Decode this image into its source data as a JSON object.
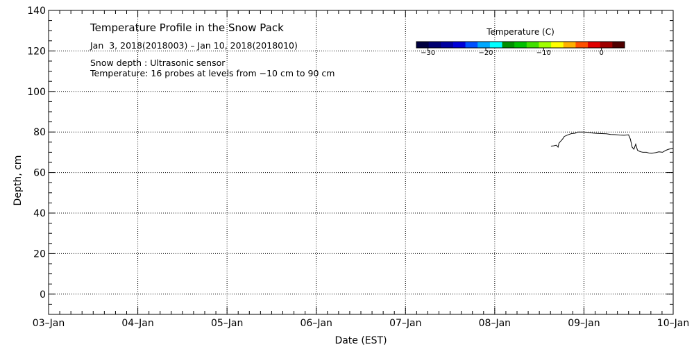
{
  "chart_data": {
    "type": "line",
    "title": "Temperature Profile in the Snow Pack",
    "subtitle_lines": [
      "Jan  3, 2018(2018003) – Jan 10, 2018(2018010)",
      "Snow depth : Ultrasonic sensor",
      "Temperature: 16 probes at levels from −10 cm to 90 cm"
    ],
    "xlabel": "Date (EST)",
    "ylabel": "Depth, cm",
    "x_ticks": [
      "03–Jan",
      "04–Jan",
      "05–Jan",
      "06–Jan",
      "07–Jan",
      "08–Jan",
      "09–Jan",
      "10–Jan"
    ],
    "xlim_days": [
      0,
      7
    ],
    "y_ticks": [
      0,
      20,
      40,
      60,
      80,
      100,
      120,
      140
    ],
    "ylim": [
      -10,
      140
    ],
    "grid": true,
    "colorbar": {
      "title": "Temperature (C)",
      "range": [
        -32,
        4
      ],
      "tick_labels": [
        {
          "value": -30,
          "label": "−30"
        },
        {
          "value": -20,
          "label": "−20"
        },
        {
          "value": -10,
          "label": "−10"
        },
        {
          "value": 0,
          "label": "0"
        }
      ],
      "colors": [
        "#000040",
        "#000070",
        "#0000a0",
        "#0000d8",
        "#0050ff",
        "#00a8ff",
        "#00ffff",
        "#009000",
        "#00c000",
        "#40e000",
        "#a0ff00",
        "#ffff00",
        "#ffb000",
        "#ff5000",
        "#e00000",
        "#a00000",
        "#500000"
      ]
    },
    "series": [
      {
        "color": "#000000",
        "x_days": [
          5.63,
          5.66,
          5.69,
          5.71,
          5.72,
          5.74,
          5.76,
          5.78,
          5.82,
          5.86,
          5.9,
          5.93,
          5.97,
          6.0,
          6.05,
          6.1,
          6.15,
          6.2,
          6.25,
          6.3,
          6.35,
          6.4,
          6.45,
          6.5,
          6.52,
          6.54,
          6.56,
          6.58,
          6.6,
          6.62,
          6.64,
          6.66,
          6.7,
          6.73,
          6.76,
          6.8,
          6.84,
          6.88,
          6.92,
          6.95,
          6.98,
          7.0
        ],
        "y_cm": [
          73.0,
          73.2,
          73.5,
          72.5,
          74.5,
          75.5,
          76.5,
          77.8,
          78.6,
          79.2,
          79.4,
          80.0,
          80.0,
          80.0,
          79.8,
          79.5,
          79.3,
          79.2,
          79.1,
          78.8,
          78.7,
          78.5,
          78.4,
          78.6,
          76.5,
          72.5,
          71.5,
          74.0,
          71.0,
          70.5,
          70.2,
          70.0,
          70.0,
          69.6,
          69.5,
          69.8,
          70.2,
          70.0,
          71.0,
          71.5,
          71.8,
          72.0
        ]
      }
    ]
  }
}
